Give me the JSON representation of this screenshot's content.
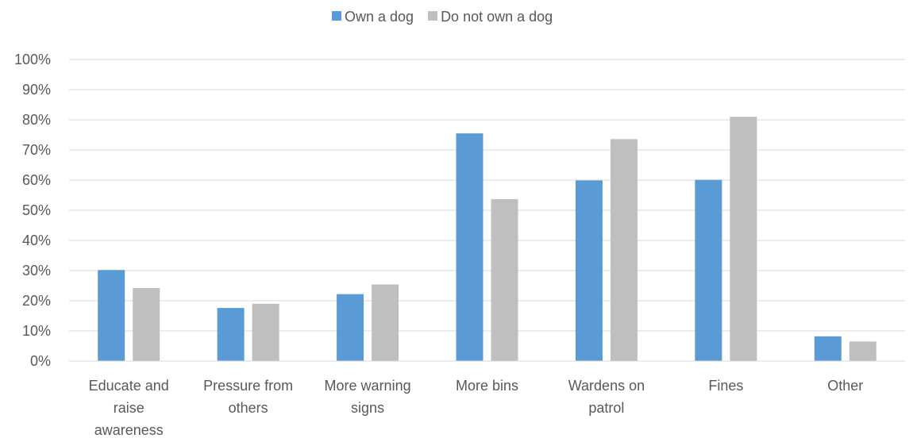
{
  "chart_data": {
    "type": "bar",
    "categories": [
      [
        "Educate and",
        "raise",
        "awareness"
      ],
      [
        "Pressure from",
        "others"
      ],
      [
        "More warning",
        "signs"
      ],
      [
        "More bins"
      ],
      [
        "Wardens on",
        "patrol"
      ],
      [
        "Fines"
      ],
      [
        "Other"
      ]
    ],
    "series": [
      {
        "name": "Own a dog",
        "color": "#5b9bd5",
        "values": [
          30.2,
          17.6,
          22.2,
          75.5,
          59.9,
          60.1,
          8.2
        ]
      },
      {
        "name": "Do not own a dog",
        "color": "#bfbfbf",
        "values": [
          24.2,
          19.0,
          25.4,
          53.7,
          73.6,
          81.0,
          6.5
        ]
      }
    ],
    "ylim": [
      0,
      100
    ],
    "yticks": [
      "0%",
      "10%",
      "20%",
      "30%",
      "40%",
      "50%",
      "60%",
      "70%",
      "80%",
      "90%",
      "100%"
    ],
    "grid": true,
    "legend": "top-center"
  }
}
